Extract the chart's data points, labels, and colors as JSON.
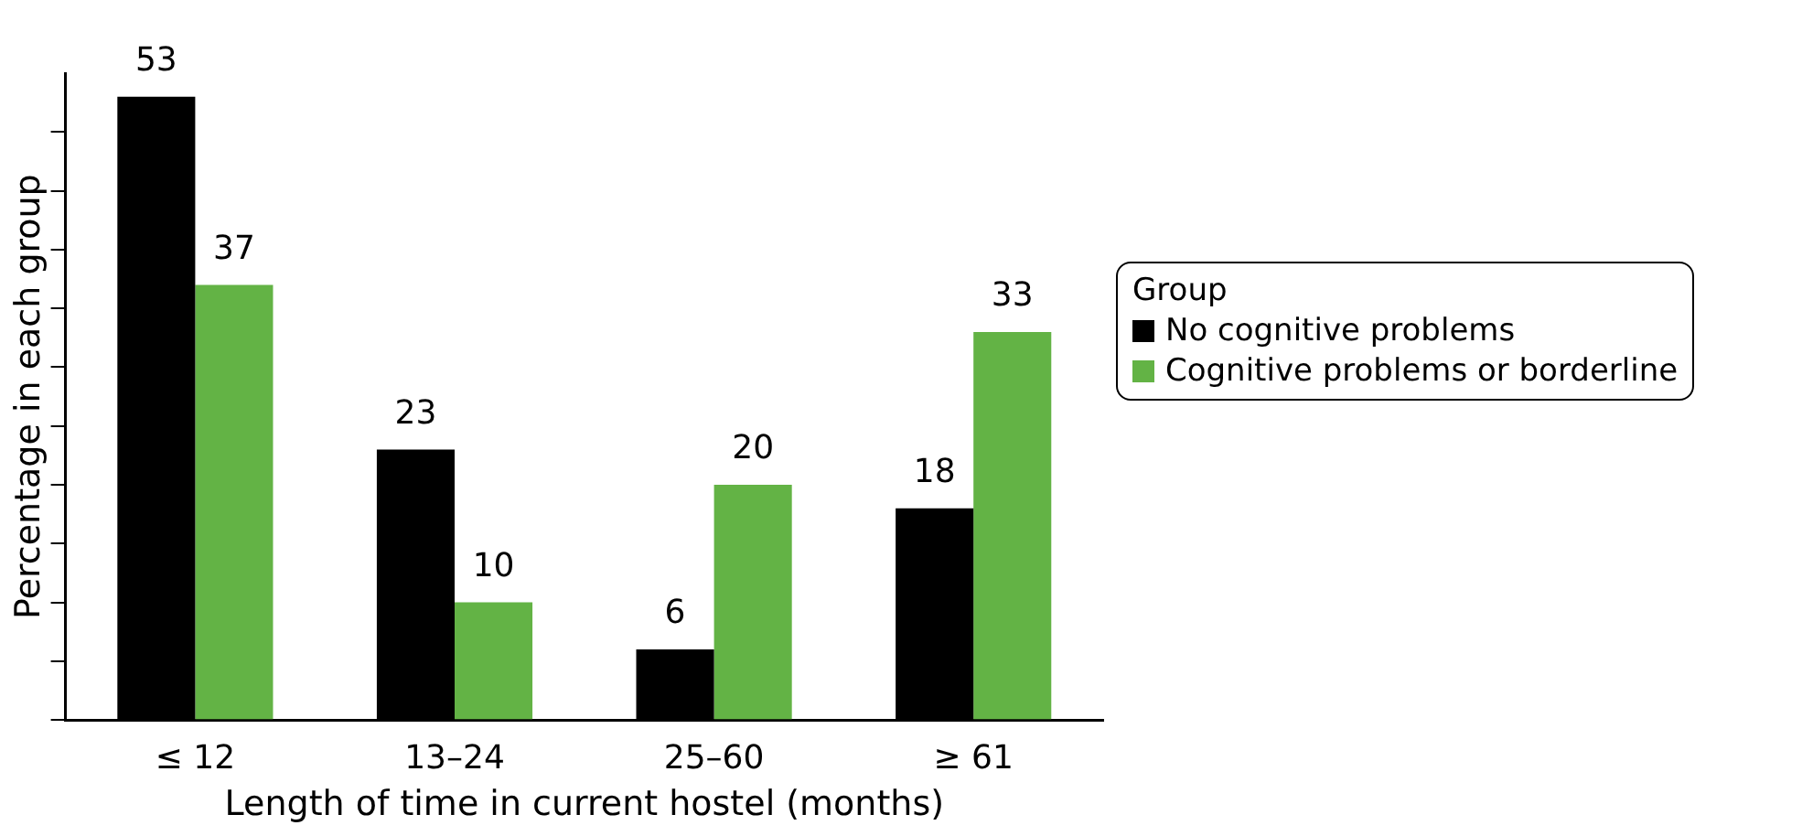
{
  "chart_data": {
    "type": "bar",
    "xlabel": "Length of time in current hostel (months)",
    "ylabel": "Percentage in each group",
    "legend_title": "Group",
    "categories": [
      "≤ 12",
      "13–24",
      "25–60",
      "≥ 61"
    ],
    "series": [
      {
        "name": "No cognitive problems",
        "color": "#000000",
        "values": [
          53,
          23,
          6,
          18
        ]
      },
      {
        "name": "Cognitive problems or borderline",
        "color": "#63b345",
        "values": [
          37,
          10,
          20,
          33
        ]
      }
    ],
    "ylim": [
      0,
      55
    ],
    "yticks": [
      {
        "value": 0,
        "label": null
      },
      {
        "value": 5,
        "label": null
      },
      {
        "value": 10,
        "label": null
      },
      {
        "value": 15,
        "label": null
      },
      {
        "value": 20,
        "label": null
      },
      {
        "value": 25,
        "label": null
      },
      {
        "value": 30,
        "label": null
      },
      {
        "value": 35,
        "label": null
      },
      {
        "value": 40,
        "label": null
      },
      {
        "value": 45,
        "label": null
      },
      {
        "value": 50,
        "label": null
      }
    ],
    "tick_labels": "x",
    "grid": false,
    "legend": "right",
    "data_labels": true
  }
}
